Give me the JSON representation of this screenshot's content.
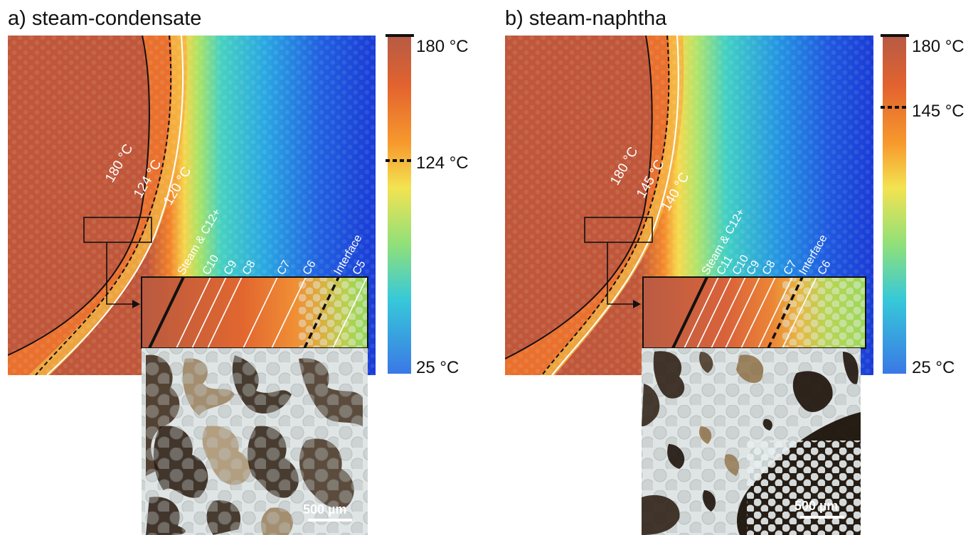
{
  "panels": [
    {
      "id": "a",
      "title": "a) steam-condensate",
      "isotherms": [
        "180 °C",
        "124 °C",
        "120 °C"
      ],
      "components": [
        "Steam & C12+",
        "C10",
        "C9",
        "C8",
        "C7",
        "C6",
        "Interface",
        "C5"
      ],
      "colorbar": {
        "top": "180 °C",
        "mid": "124 °C",
        "bottom": "25 °C"
      },
      "scale_bar": "500 µm"
    },
    {
      "id": "b",
      "title": "b) steam-naphtha",
      "isotherms": [
        "180 °C",
        "145 °C",
        "140 °C"
      ],
      "components": [
        "Steam & C12+",
        "C11",
        "C10",
        "C9",
        "C8",
        "C7",
        "Interface",
        "C6"
      ],
      "colorbar": {
        "top": "180 °C",
        "mid": "145 °C",
        "bottom": "25 °C"
      },
      "scale_bar": "500 µm"
    }
  ],
  "colors": {
    "hot": "#c0573a",
    "front": "#f07a2a",
    "warm": "#f5c542",
    "mid": "#cfe24a",
    "cool": "#5fd6b8",
    "cold": "#2f8ee0",
    "coldest": "#1a3fd8",
    "micro_bg": "#dfe4e4",
    "oil": "#2b1d12"
  }
}
